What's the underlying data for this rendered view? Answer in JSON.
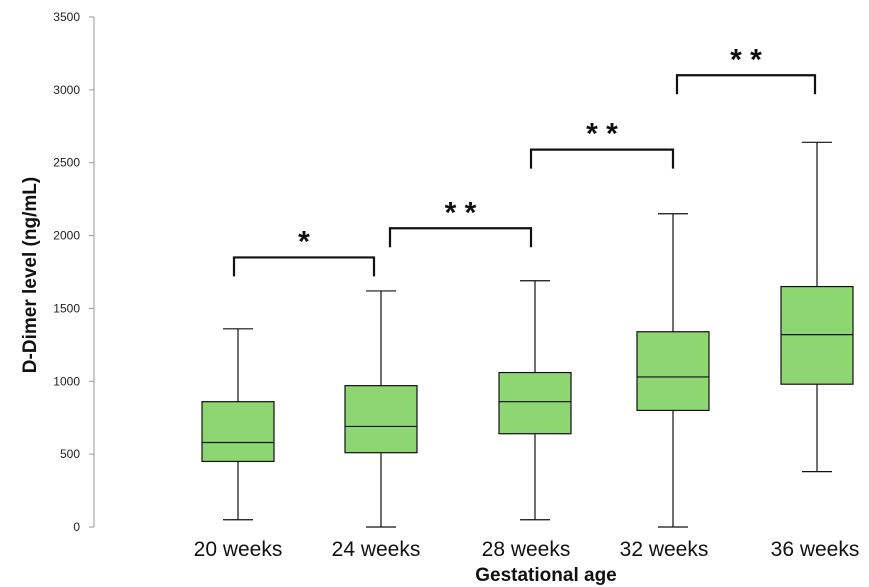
{
  "chart_data": {
    "type": "box",
    "title": "",
    "xlabel": "Gestational age",
    "ylabel": "D-Dimer level (ng/mL)",
    "ylim": [
      0,
      3500
    ],
    "yticks": [
      0,
      500,
      1000,
      1500,
      2000,
      2500,
      3000,
      3500
    ],
    "ytick_labels": [
      "0",
      "500",
      "1000",
      "1500",
      "2000",
      "2500",
      "3000",
      "3500"
    ],
    "grid": false,
    "box_color": "#8dd672",
    "categories": [
      "20 weeks",
      "24 weeks",
      "28 weeks",
      "32 weeks",
      "36 weeks"
    ],
    "boxes": [
      {
        "min": 50,
        "q1": 450,
        "median": 580,
        "q3": 860,
        "max": 1360
      },
      {
        "min": 0,
        "q1": 510,
        "median": 690,
        "q3": 970,
        "max": 1620
      },
      {
        "min": 50,
        "q1": 640,
        "median": 860,
        "q3": 1060,
        "max": 1690
      },
      {
        "min": 0,
        "q1": 800,
        "median": 1030,
        "q3": 1340,
        "max": 2150
      },
      {
        "min": 380,
        "q1": 980,
        "median": 1320,
        "q3": 1650,
        "max": 2640
      }
    ],
    "significance": [
      {
        "from": 0,
        "to": 1,
        "label": "*",
        "level": 1850
      },
      {
        "from": 1,
        "to": 2,
        "label": "* *",
        "level": 2050
      },
      {
        "from": 2,
        "to": 3,
        "label": "* *",
        "level": 2590
      },
      {
        "from": 3,
        "to": 4,
        "label": "* *",
        "level": 3100
      }
    ]
  }
}
